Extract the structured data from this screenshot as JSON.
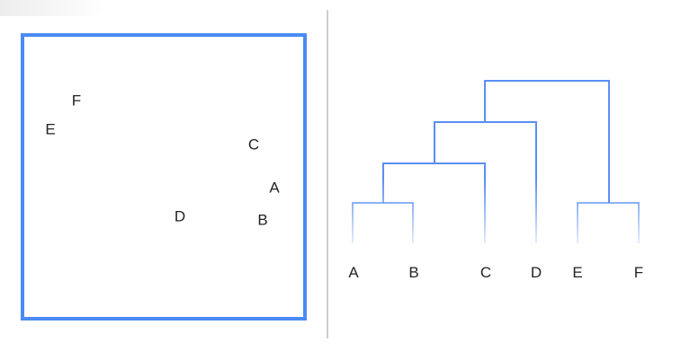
{
  "scatter": {
    "points": [
      {
        "id": "A",
        "label": "A"
      },
      {
        "id": "B",
        "label": "B"
      },
      {
        "id": "C",
        "label": "C"
      },
      {
        "id": "D",
        "label": "D"
      },
      {
        "id": "E",
        "label": "E"
      },
      {
        "id": "F",
        "label": "F"
      }
    ]
  },
  "dendrogram": {
    "leaves": [
      "A",
      "B",
      "C",
      "D",
      "E",
      "F"
    ],
    "merges": [
      {
        "left": "A",
        "right": "B"
      },
      {
        "left": "E",
        "right": "F"
      },
      {
        "left": "AB",
        "right": "C"
      },
      {
        "left": "ABC",
        "right": "D"
      },
      {
        "left": "ABCD",
        "right": "EF"
      }
    ]
  },
  "colors": {
    "frame": "#4a8af4",
    "branch": "#5b8ef0",
    "divider": "#cfcfcf",
    "text": "#222222"
  }
}
